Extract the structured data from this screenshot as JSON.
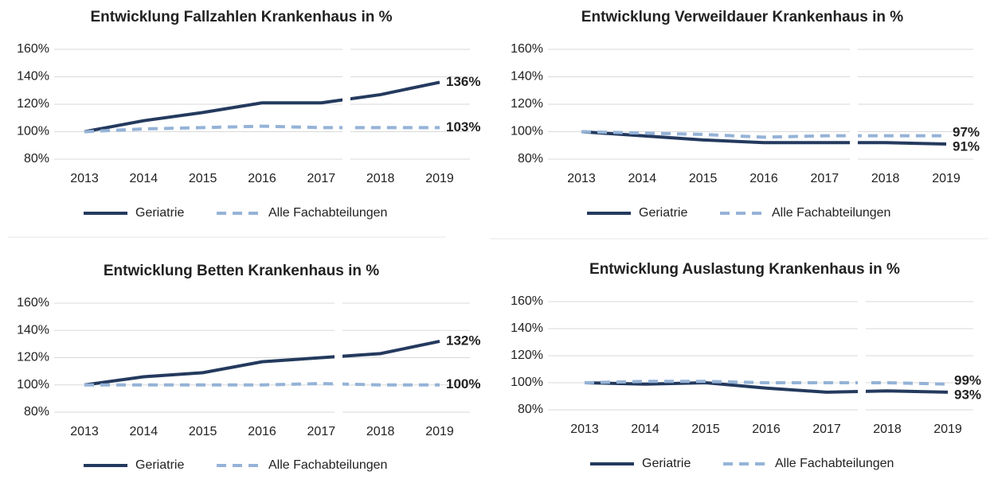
{
  "chart_data": [
    {
      "type": "line",
      "title": "Entwicklung Fallzahlen Krankenhaus in %",
      "categories": [
        "2013",
        "2014",
        "2015",
        "2016",
        "2017",
        "2018",
        "2019"
      ],
      "ylim": [
        80,
        160
      ],
      "yticks": [
        {
          "value": 80,
          "label": "80%"
        },
        {
          "value": 100,
          "label": "100%"
        },
        {
          "value": 120,
          "label": "120%"
        },
        {
          "value": 140,
          "label": "140%"
        },
        {
          "value": 160,
          "label": "160%"
        }
      ],
      "grid": true,
      "series": [
        {
          "name": "Geriatrie",
          "color": "#243a5e",
          "dashed": false,
          "values": [
            100,
            108,
            114,
            121,
            121,
            127,
            136
          ],
          "value_labels": [
            null,
            null,
            null,
            null,
            null,
            null,
            "136%"
          ]
        },
        {
          "name": "Alle Fachabteilungen",
          "color": "#95b3d7",
          "dashed": true,
          "values": [
            100,
            102,
            103,
            104,
            103,
            103,
            103
          ],
          "value_labels": [
            null,
            null,
            null,
            null,
            null,
            null,
            "103%"
          ]
        }
      ]
    },
    {
      "type": "line",
      "title": "Entwicklung Verweildauer Krankenhaus in %",
      "categories": [
        "2013",
        "2014",
        "2015",
        "2016",
        "2017",
        "2018",
        "2019"
      ],
      "ylim": [
        80,
        160
      ],
      "yticks": [
        {
          "value": 80,
          "label": "80%"
        },
        {
          "value": 100,
          "label": "100%"
        },
        {
          "value": 120,
          "label": "120%"
        },
        {
          "value": 140,
          "label": "140%"
        },
        {
          "value": 160,
          "label": "160%"
        }
      ],
      "grid": true,
      "series": [
        {
          "name": "Geriatrie",
          "color": "#243a5e",
          "dashed": false,
          "values": [
            100,
            97,
            94,
            92,
            92,
            92,
            91
          ],
          "value_labels": [
            null,
            null,
            null,
            null,
            null,
            null,
            "91%"
          ]
        },
        {
          "name": "Alle Fachabteilungen",
          "color": "#95b3d7",
          "dashed": true,
          "values": [
            100,
            99,
            98,
            96,
            97,
            97,
            97
          ],
          "value_labels": [
            null,
            null,
            null,
            null,
            null,
            null,
            "97%"
          ]
        }
      ]
    },
    {
      "type": "line",
      "title": "Entwicklung Betten Krankenhaus in %",
      "categories": [
        "2013",
        "2014",
        "2015",
        "2016",
        "2017",
        "2018",
        "2019"
      ],
      "ylim": [
        80,
        160
      ],
      "yticks": [
        {
          "value": 80,
          "label": "80%"
        },
        {
          "value": 100,
          "label": "100%"
        },
        {
          "value": 120,
          "label": "120%"
        },
        {
          "value": 140,
          "label": "140%"
        },
        {
          "value": 160,
          "label": "160%"
        }
      ],
      "grid": true,
      "series": [
        {
          "name": "Geriatrie",
          "color": "#243a5e",
          "dashed": false,
          "values": [
            100,
            106,
            109,
            117,
            120,
            123,
            132
          ],
          "value_labels": [
            null,
            null,
            null,
            null,
            null,
            null,
            "132%"
          ]
        },
        {
          "name": "Alle Fachabteilungen",
          "color": "#95b3d7",
          "dashed": true,
          "values": [
            100,
            100,
            100,
            100,
            101,
            100,
            100
          ],
          "value_labels": [
            null,
            null,
            null,
            null,
            null,
            null,
            "100%"
          ]
        }
      ]
    },
    {
      "type": "line",
      "title": "Entwicklung Auslastung Krankenhaus in %",
      "categories": [
        "2013",
        "2014",
        "2015",
        "2016",
        "2017",
        "2018",
        "2019"
      ],
      "ylim": [
        80,
        160
      ],
      "yticks": [
        {
          "value": 80,
          "label": "80%"
        },
        {
          "value": 100,
          "label": "100%"
        },
        {
          "value": 120,
          "label": "120%"
        },
        {
          "value": 140,
          "label": "140%"
        },
        {
          "value": 160,
          "label": "160%"
        }
      ],
      "grid": true,
      "series": [
        {
          "name": "Geriatrie",
          "color": "#243a5e",
          "dashed": false,
          "values": [
            100,
            99,
            100,
            96,
            93,
            94,
            93
          ],
          "value_labels": [
            null,
            null,
            null,
            null,
            null,
            null,
            "93%"
          ]
        },
        {
          "name": "Alle Fachabteilungen",
          "color": "#95b3d7",
          "dashed": true,
          "values": [
            100,
            101,
            101,
            100,
            100,
            100,
            99
          ],
          "value_labels": [
            null,
            null,
            null,
            null,
            null,
            null,
            "99%"
          ]
        }
      ]
    }
  ]
}
